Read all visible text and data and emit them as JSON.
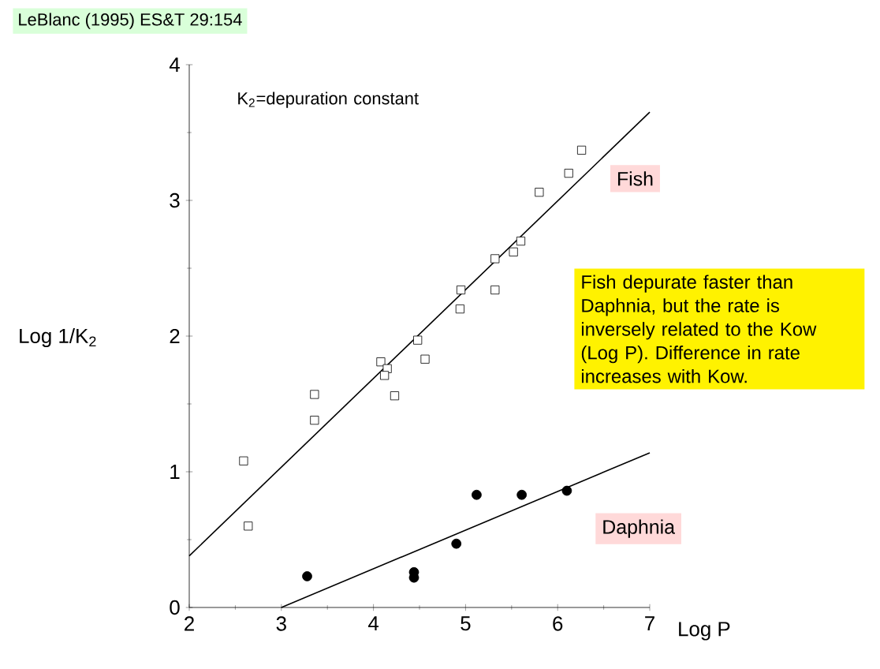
{
  "chart_data": {
    "type": "scatter",
    "xlabel": "Log P",
    "ylabel": "Log 1/K$_{2}$",
    "annotations": [
      "LeBlanc (1995) ES&T 29:154",
      "K$_{2}$=depuration constant",
      "Fish depurate faster than Daphnia, but the rate is inversely related to the Kow (Log P). Difference in rate increases with Kow."
    ],
    "xlim": [
      2,
      7
    ],
    "ylim": [
      0,
      4
    ],
    "xticks": [
      2,
      3,
      4,
      5,
      6,
      7
    ],
    "yticks": [
      0,
      1,
      2,
      3,
      4
    ],
    "series": [
      {
        "name": "Fish",
        "marker": "square",
        "color": "#000000",
        "x": [
          6.26,
          6.12,
          5.8,
          5.6,
          5.52,
          5.32,
          5.32,
          4.95,
          4.94,
          4.48,
          4.56,
          4.08,
          4.15,
          4.12,
          4.23,
          3.36,
          3.36,
          2.59,
          2.64
        ],
        "values": [
          3.37,
          3.2,
          3.06,
          2.7,
          2.62,
          2.57,
          2.34,
          2.34,
          2.2,
          1.97,
          1.83,
          1.81,
          1.76,
          1.71,
          1.56,
          1.57,
          1.38,
          1.08,
          0.6
        ]
      },
      {
        "name": "Daphnia",
        "marker": "circle",
        "color": "#000000",
        "x": [
          3.28,
          4.44,
          4.44,
          4.9,
          5.12,
          5.61,
          6.1
        ],
        "values": [
          0.23,
          0.26,
          0.22,
          0.47,
          0.83,
          0.83,
          0.86
        ]
      },
      {
        "type": "line",
        "marker": "none",
        "color": "#000000",
        "x": [
          2,
          7
        ],
        "values": [
          0.38,
          3.65
        ]
      },
      {
        "type": "line",
        "marker": "none",
        "color": "#000000",
        "x": [
          3,
          7
        ],
        "values": [
          0,
          1.14
        ]
      }
    ]
  }
}
